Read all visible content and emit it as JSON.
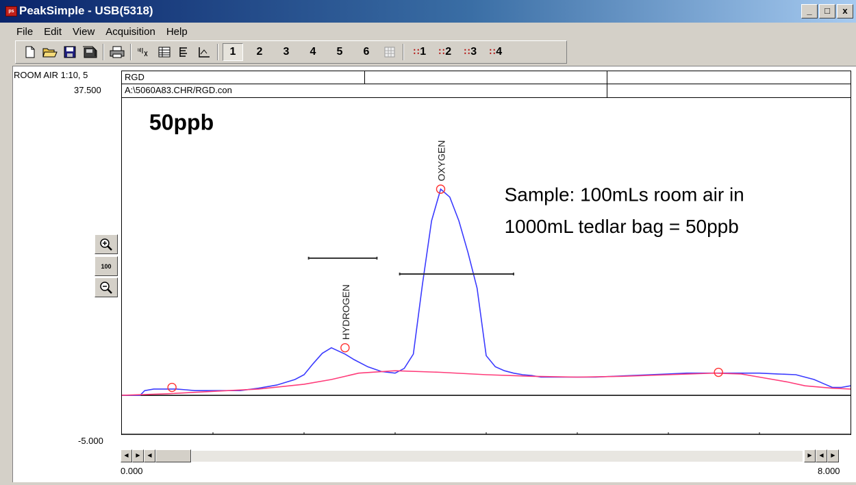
{
  "window": {
    "title": "PeakSimple - USB(5318)",
    "app_icon_label": "ps"
  },
  "window_controls": {
    "minimize": "_",
    "maximize": "□",
    "close": "x"
  },
  "menu": [
    "File",
    "Edit",
    "View",
    "Acquisition",
    "Help"
  ],
  "toolbar": {
    "tools": [
      "new-file-icon",
      "open-folder-icon",
      "save-icon",
      "save-all-icon",
      "print-icon",
      "peak-label-icon",
      "results-table-icon",
      "component-table-icon",
      "axis-icon"
    ],
    "channels": [
      "1",
      "2",
      "3",
      "4",
      "5",
      "6"
    ],
    "active_channel": "1",
    "detectors": [
      "1",
      "2",
      "3",
      "4"
    ]
  },
  "chart_header": {
    "sample_label": "ROOM AIR 1:10, 5",
    "y_max": "37.500",
    "y_min": "-5.000",
    "x_min": "0.000",
    "x_max": "8.000",
    "row1": [
      "RGD",
      "",
      ""
    ],
    "row2": [
      "A:\\5060A83.CHR/RGD.con",
      "",
      ""
    ]
  },
  "zoom": {
    "in": "zoom-in-icon",
    "level": "100",
    "out": "zoom-out-icon"
  },
  "chart_data": {
    "type": "line",
    "xlim": [
      0.0,
      8.0
    ],
    "ylim": [
      -5.0,
      37.5
    ],
    "series": [
      {
        "color": "#3a3aff",
        "x": [
          0.0,
          0.2,
          0.25,
          0.35,
          0.5,
          0.6,
          0.7,
          0.8,
          1.0,
          1.3,
          1.5,
          1.7,
          1.9,
          2.0,
          2.1,
          2.2,
          2.3,
          2.45,
          2.55,
          2.7,
          2.85,
          3.0,
          3.1,
          3.2,
          3.3,
          3.4,
          3.5,
          3.6,
          3.7,
          3.8,
          3.9,
          4.0,
          4.1,
          4.2,
          4.3,
          4.4,
          4.5,
          4.6,
          4.7,
          4.8,
          5.0,
          5.2,
          5.4,
          5.6,
          5.8,
          6.0,
          6.2,
          6.4,
          6.6,
          6.8,
          7.0,
          7.2,
          7.4,
          7.5,
          7.6,
          7.7,
          7.8,
          7.9,
          8.0
        ],
        "y": [
          0.0,
          0.0,
          0.6,
          0.8,
          0.8,
          0.8,
          0.7,
          0.6,
          0.6,
          0.6,
          0.9,
          1.3,
          2.0,
          2.6,
          4.0,
          5.3,
          6.0,
          5.2,
          4.5,
          3.6,
          3.0,
          2.8,
          3.4,
          5.2,
          14.0,
          22.0,
          26.0,
          25.0,
          22.0,
          18.0,
          13.5,
          5.0,
          3.6,
          3.1,
          2.8,
          2.6,
          2.5,
          2.3,
          2.3,
          2.3,
          2.3,
          2.3,
          2.4,
          2.5,
          2.6,
          2.7,
          2.8,
          2.8,
          2.8,
          2.8,
          2.8,
          2.7,
          2.6,
          2.3,
          2.0,
          1.5,
          1.0,
          1.0,
          1.2
        ]
      },
      {
        "color": "#ff3c7a",
        "x": [
          0.0,
          0.5,
          1.0,
          1.5,
          2.0,
          2.3,
          2.6,
          3.0,
          3.5,
          4.0,
          4.5,
          5.0,
          5.5,
          6.0,
          6.5,
          6.8,
          7.0,
          7.3,
          7.5,
          7.8,
          8.0
        ],
        "y": [
          0.0,
          0.2,
          0.5,
          0.8,
          1.4,
          2.0,
          2.8,
          3.1,
          2.9,
          2.6,
          2.4,
          2.3,
          2.4,
          2.6,
          2.8,
          2.7,
          2.3,
          1.7,
          1.2,
          0.9,
          0.8
        ]
      }
    ],
    "peak_markers": [
      {
        "x": 0.55,
        "y": 1.0
      },
      {
        "x": 2.45,
        "y": 6.0
      },
      {
        "x": 3.5,
        "y": 26.0
      },
      {
        "x": 6.55,
        "y": 2.9
      }
    ],
    "integration_bars": [
      {
        "x1": 2.05,
        "x2": 2.8,
        "y": 17.3
      },
      {
        "x1": 3.05,
        "x2": 4.3,
        "y": 15.3
      }
    ],
    "baseline_y": 0.0,
    "annotations": [
      {
        "text": "HYDROGEN",
        "x": 2.45,
        "y": 7.0,
        "rotated": true
      },
      {
        "text": "OXYGEN",
        "x": 3.5,
        "y": 27.0,
        "rotated": true
      },
      {
        "text": "50ppb",
        "x": 0.3,
        "y": 33.5
      },
      {
        "text": "Sample: 100mLs room air in",
        "x": 4.2,
        "y": 24.5
      },
      {
        "text": "1000mL tedlar bag = 50ppb",
        "x": 4.2,
        "y": 20.5
      }
    ]
  }
}
